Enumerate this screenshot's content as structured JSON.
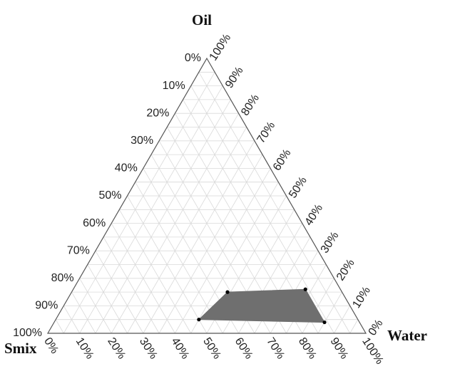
{
  "chart_data": {
    "type": "ternary",
    "vertices": {
      "top": "Oil",
      "bottom_left": "Smix",
      "bottom_right": "Water"
    },
    "axes": {
      "left": {
        "ticks": [
          "0%",
          "10%",
          "20%",
          "30%",
          "40%",
          "50%",
          "60%",
          "70%",
          "80%",
          "90%",
          "100%"
        ]
      },
      "right": {
        "ticks": [
          "0%",
          "10%",
          "20%",
          "30%",
          "40%",
          "50%",
          "60%",
          "70%",
          "80%",
          "90%",
          "100%"
        ]
      },
      "bottom": {
        "ticks": [
          "0%",
          "10%",
          "20%",
          "30%",
          "40%",
          "50%",
          "60%",
          "70%",
          "80%",
          "90%",
          "100%"
        ]
      }
    },
    "grid": true,
    "grid_step_percent": 5,
    "region_color": "#6f6f6f",
    "region_points": [
      {
        "oil": 5,
        "water": 45,
        "smix": 50
      },
      {
        "oil": 15,
        "water": 49,
        "smix": 36
      },
      {
        "oil": 16,
        "water": 73,
        "smix": 11
      },
      {
        "oil": 4,
        "water": 85,
        "smix": 11
      }
    ]
  }
}
